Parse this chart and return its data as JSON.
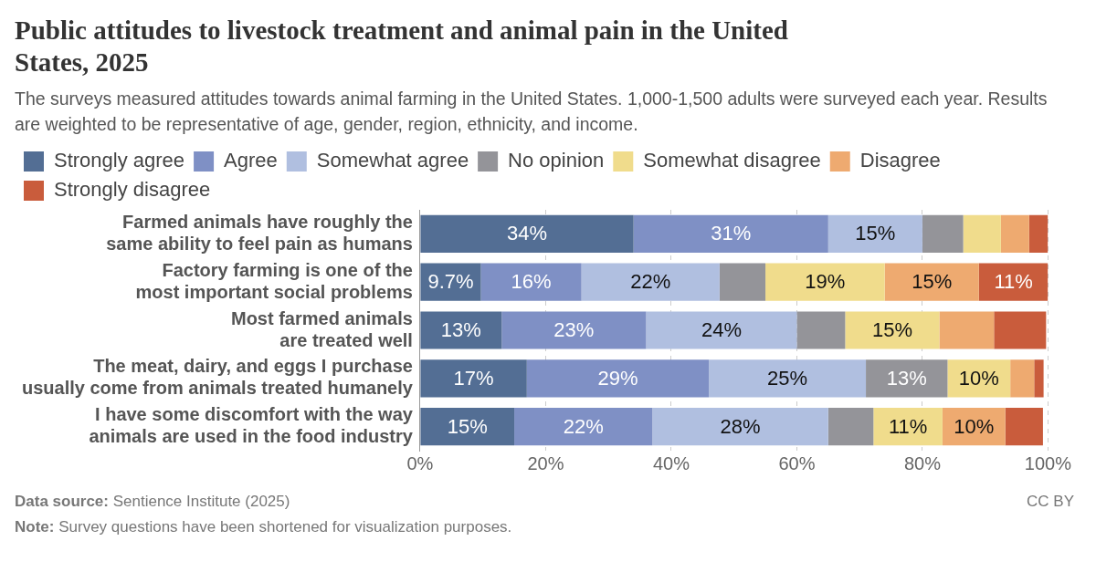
{
  "chart_data": {
    "type": "bar",
    "orientation": "horizontal",
    "stacked": true,
    "title": "Public attitudes to livestock treatment and animal pain in the United States, 2025",
    "subtitle": "The surveys measured attitudes towards animal farming in the United States. 1,000-1,500 adults were surveyed each year. Results are weighted to be representative of age, gender, region, ethnicity, and income.",
    "categories": [
      "Farmed animals have roughly the same ability to feel pain as humans",
      "Factory farming is one of the most important social problems",
      "Most farmed animals are treated well",
      "The meat, dairy, and eggs I purchase usually come from animals treated humanely",
      "I have some discomfort with the way animals are used in the food industry"
    ],
    "series": [
      {
        "name": "Strongly agree",
        "color": "#536e94",
        "values": [
          34,
          9.7,
          13,
          17,
          15
        ],
        "value_labels": [
          "34%",
          "9.7%",
          "13%",
          "17%",
          "15%"
        ]
      },
      {
        "name": "Agree",
        "color": "#7f90c5",
        "values": [
          31,
          16,
          23,
          29,
          22
        ],
        "value_labels": [
          "31%",
          "16%",
          "23%",
          "29%",
          "22%"
        ]
      },
      {
        "name": "Somewhat agree",
        "color": "#b0bfe0",
        "values": [
          15,
          22,
          24,
          25,
          28
        ],
        "value_labels": [
          "15%",
          "22%",
          "24%",
          "25%",
          "28%"
        ]
      },
      {
        "name": "No opinion",
        "color": "#949499",
        "values": [
          6.5,
          7.3,
          7.7,
          13,
          7.2
        ],
        "value_labels": [
          null,
          null,
          null,
          "13%",
          null
        ]
      },
      {
        "name": "Somewhat disagree",
        "color": "#f0dc8c",
        "values": [
          6,
          19,
          15,
          10,
          11
        ],
        "value_labels": [
          null,
          "19%",
          "15%",
          "10%",
          "11%"
        ]
      },
      {
        "name": "Disagree",
        "color": "#eeaa70",
        "values": [
          4.5,
          15,
          8.7,
          3.8,
          10
        ],
        "value_labels": [
          null,
          "15%",
          null,
          null,
          "10%"
        ]
      },
      {
        "name": "Strongly disagree",
        "color": "#c95c3c",
        "values": [
          3,
          11,
          8.3,
          1.5,
          6
        ],
        "value_labels": [
          null,
          "11%",
          null,
          null,
          null
        ]
      }
    ],
    "xlim": [
      0,
      100
    ],
    "xticks": [
      {
        "value": 0,
        "label": "0%"
      },
      {
        "value": 20,
        "label": "20%"
      },
      {
        "value": 40,
        "label": "40%"
      },
      {
        "value": 60,
        "label": "60%"
      },
      {
        "value": 80,
        "label": "80%"
      },
      {
        "value": 100,
        "label": "100%"
      }
    ],
    "grid": "x",
    "legend": "top",
    "annotations": [
      "Data source: Sentience Institute (2025)",
      "CC BY",
      "Note: Survey questions have been shortened for visualization purposes."
    ]
  }
}
